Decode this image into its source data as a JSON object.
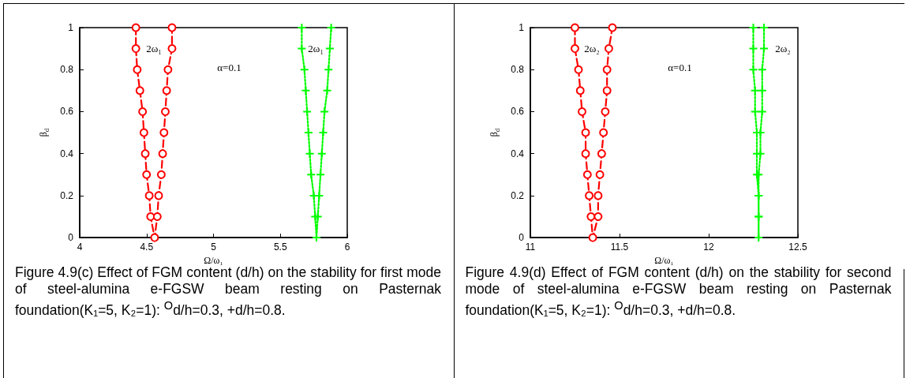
{
  "chart_data": [
    {
      "type": "line",
      "xlabel": "Ω/ω₁",
      "ylabel": "β$_{d}$",
      "xlim": [
        4,
        6
      ],
      "xticks": [
        4,
        4.5,
        5,
        5.5,
        6
      ],
      "ylim": [
        0,
        1
      ],
      "yticks": [
        0,
        0.2,
        0.4,
        0.6,
        0.8,
        1
      ],
      "grid": false,
      "series": [
        {
          "color": "#ff0000",
          "marker": "circle",
          "line_style": "dashed",
          "x": [
            4.42,
            4.42,
            4.43,
            4.45,
            4.47,
            4.48,
            4.49,
            4.5,
            4.52,
            4.53,
            4.56,
            4.58,
            4.59,
            4.61,
            4.62,
            4.63,
            4.64,
            4.65,
            4.66,
            4.69,
            4.69
          ],
          "values": [
            1,
            0.9,
            0.8,
            0.7,
            0.6,
            0.5,
            0.4,
            0.3,
            0.2,
            0.1,
            0,
            0.1,
            0.2,
            0.3,
            0.4,
            0.5,
            0.6,
            0.7,
            0.8,
            0.9,
            1
          ]
        },
        {
          "color": "#00ff00",
          "marker": "cross",
          "line_style": "dotted",
          "x": [
            5.66,
            5.66,
            5.68,
            5.69,
            5.7,
            5.71,
            5.72,
            5.73,
            5.75,
            5.76,
            5.77,
            5.78,
            5.79,
            5.8,
            5.81,
            5.82,
            5.83,
            5.85,
            5.86,
            5.87,
            5.88
          ],
          "values": [
            1,
            0.9,
            0.8,
            0.7,
            0.6,
            0.5,
            0.4,
            0.3,
            0.2,
            0.1,
            0,
            0.1,
            0.2,
            0.3,
            0.4,
            0.5,
            0.6,
            0.7,
            0.8,
            0.9,
            1
          ]
        }
      ],
      "annotations": [
        "2ω₁",
        "2ω₁",
        "α=0.1",
        "Figure 4.9(c) Effect of FGM content (d/h) on the stability for first mode of steel-alumina e-FGSW beam resting on Pasternak foundation(K₁=5, K₂=1): $^{O}$d/h=0.3, +d/h=0.8."
      ]
    },
    {
      "type": "line",
      "xlabel": "Ω/ω₁",
      "ylabel": "β$_{d}$",
      "xlim": [
        11,
        12.5
      ],
      "xticks": [
        11,
        11.5,
        12,
        12.5
      ],
      "ylim": [
        0,
        1
      ],
      "yticks": [
        0,
        0.2,
        0.4,
        0.6,
        0.8,
        1
      ],
      "grid": false,
      "series": [
        {
          "color": "#ff0000",
          "marker": "circle",
          "line_style": "dashed",
          "x": [
            11.25,
            11.25,
            11.27,
            11.28,
            11.29,
            11.31,
            11.31,
            11.32,
            11.33,
            11.34,
            11.35,
            11.38,
            11.38,
            11.39,
            11.4,
            11.41,
            11.42,
            11.43,
            11.43,
            11.44,
            11.46
          ],
          "values": [
            1,
            0.9,
            0.8,
            0.7,
            0.6,
            0.5,
            0.4,
            0.3,
            0.2,
            0.1,
            0,
            0.1,
            0.2,
            0.3,
            0.4,
            0.5,
            0.6,
            0.7,
            0.8,
            0.9,
            1
          ]
        },
        {
          "color": "#00ff00",
          "marker": "cross",
          "line_style": "dotted",
          "x": [
            12.25,
            12.25,
            12.25,
            12.26,
            12.26,
            12.27,
            12.27,
            12.27,
            12.28,
            12.28,
            12.28,
            12.28,
            12.28,
            12.28,
            12.29,
            12.29,
            12.3,
            12.3,
            12.3,
            12.31,
            12.31
          ],
          "values": [
            1,
            0.9,
            0.8,
            0.7,
            0.6,
            0.5,
            0.4,
            0.3,
            0.2,
            0.1,
            0,
            0.1,
            0.2,
            0.3,
            0.4,
            0.5,
            0.6,
            0.7,
            0.8,
            0.9,
            1
          ]
        }
      ],
      "annotations": [
        "2ω₂",
        "2ω₂",
        "α=0.1",
        "Figure 4.9(d) Effect of FGM content (d/h) on the stability for second mode of steel-alumina e-FGSW beam resting on Pasternak foundation(K₁=5, K₂=1): $^{O}$d/h=0.3, +d/h=0.8."
      ]
    }
  ]
}
